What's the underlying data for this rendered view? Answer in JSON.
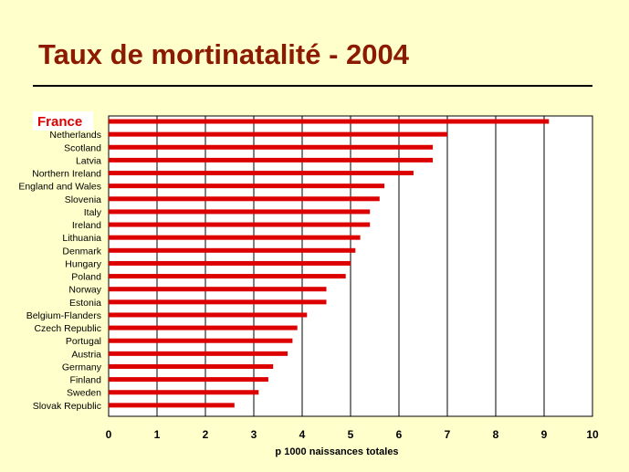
{
  "page": {
    "title": "Taux de mortinatalité - 2004"
  },
  "chart_data": {
    "type": "bar",
    "orientation": "horizontal",
    "title": "Taux de mortinatalité - 2004",
    "xlabel": "p 1000 naissances totales",
    "ylabel": "",
    "xlim": [
      0,
      10
    ],
    "xticks": [
      "0",
      "1",
      "2",
      "3",
      "4",
      "5",
      "6",
      "7",
      "8",
      "9",
      "10"
    ],
    "grid": "vertical",
    "bar_color": "#DD0000",
    "highlight_color": "#DD0000",
    "highlight_category": "France",
    "categories": [
      "France",
      "Netherlands",
      "Scotland",
      "Latvia",
      "Northern Ireland",
      "England and Wales",
      "Slovenia",
      "Italy",
      "Ireland",
      "Lithuania",
      "Denmark",
      "Hungary",
      "Poland",
      "Norway",
      "Estonia",
      "Belgium-Flanders",
      "Czech Republic",
      "Portugal",
      "Austria",
      "Germany",
      "Finland",
      "Sweden",
      "Slovak Republic"
    ],
    "values": [
      9.1,
      7.0,
      6.7,
      6.7,
      6.3,
      5.7,
      5.6,
      5.4,
      5.4,
      5.2,
      5.1,
      5.0,
      4.9,
      4.5,
      4.5,
      4.1,
      3.9,
      3.8,
      3.7,
      3.4,
      3.3,
      3.1,
      2.6
    ]
  }
}
